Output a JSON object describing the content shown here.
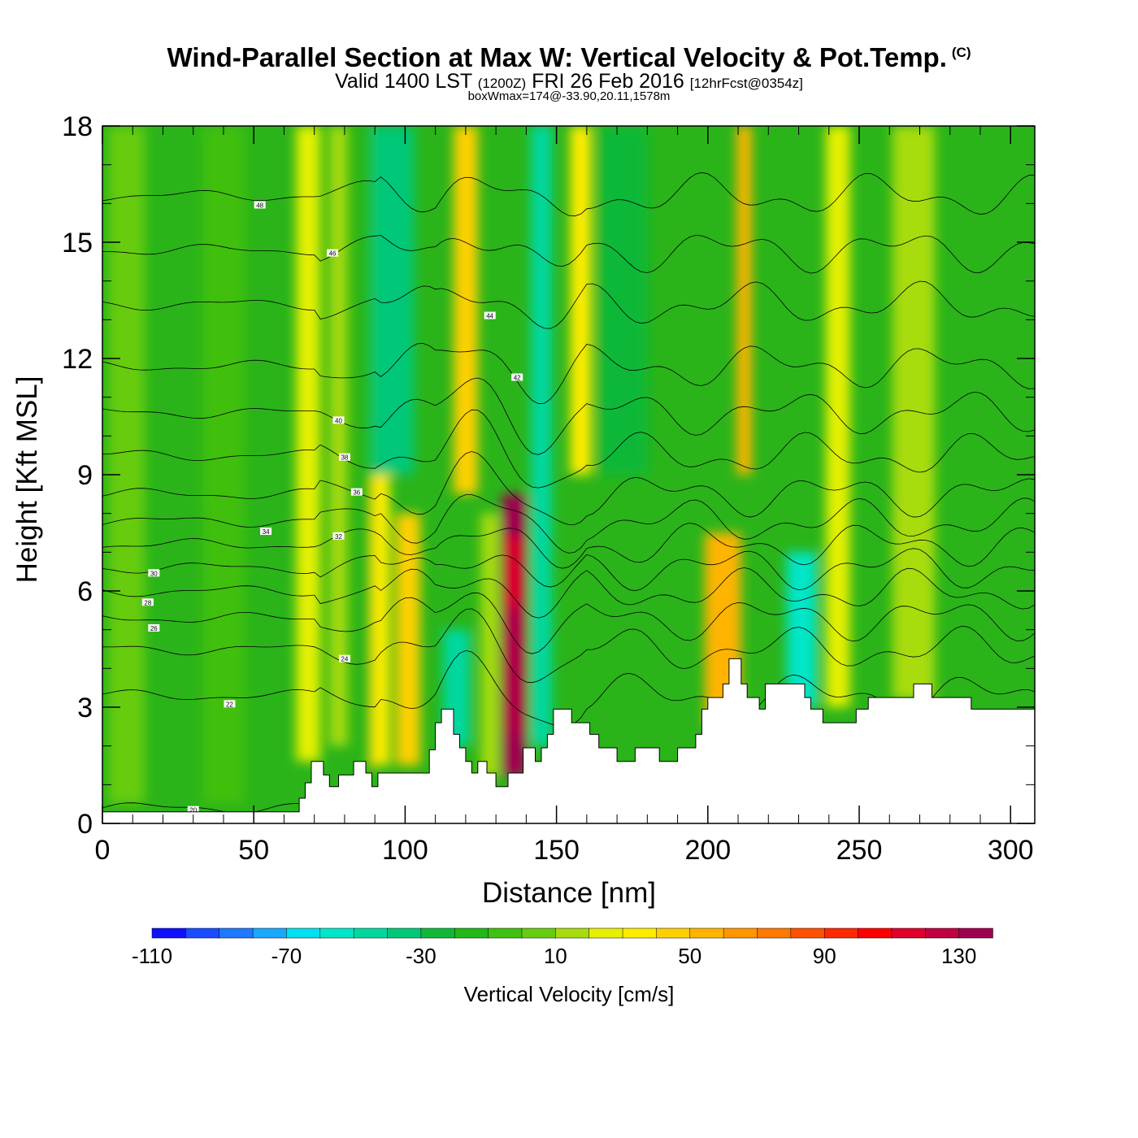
{
  "title": {
    "main": "Wind-Parallel Section at Max W: Vertical Velocity & Pot.Temp.",
    "copyright": "(C)",
    "valid_prefix": "Valid 1400 LST",
    "valid_utc": "(1200Z)",
    "valid_date": "FRI 26 Feb 2016",
    "forecast": "[12hrFcst@0354z]",
    "box_info": "boxWmax=174@-33.90,20.11,1578m"
  },
  "chart_data": {
    "type": "heatmap",
    "xlabel": "Distance [nm]",
    "ylabel": "Height [Kft MSL]",
    "xlim": [
      0,
      308
    ],
    "ylim": [
      0,
      18
    ],
    "x_ticks": [
      "0",
      "50",
      "100",
      "150",
      "200",
      "250",
      "300"
    ],
    "y_ticks": [
      "0",
      "3",
      "6",
      "9",
      "12",
      "15",
      "18"
    ],
    "colorbar": {
      "label": "Vertical Velocity [cm/s]",
      "min": -110,
      "max": 160,
      "step": 10,
      "tick_labels": [
        "-110",
        "-70",
        "-30",
        "10",
        "50",
        "90",
        "130"
      ],
      "colors": [
        "#1010ff",
        "#1a4cff",
        "#1f78ff",
        "#1aa8ff",
        "#00e0f0",
        "#00e6c8",
        "#00d8a0",
        "#00c878",
        "#10b838",
        "#22b818",
        "#40c010",
        "#66cc10",
        "#a8dc10",
        "#e6f000",
        "#ffec00",
        "#ffd000",
        "#ffb400",
        "#ff9600",
        "#ff7800",
        "#ff5000",
        "#ff2800",
        "#ff0000",
        "#e0002c",
        "#c00040",
        "#a00050"
      ]
    },
    "vertical_velocity_bands": [
      {
        "x": 8,
        "width": 12,
        "w_cms": 5,
        "bottom_kft": 0.5,
        "top_kft": 18
      },
      {
        "x": 40,
        "width": 14,
        "w_cms": -8,
        "bottom_kft": 0.5,
        "top_kft": 18
      },
      {
        "x": 68,
        "width": 8,
        "w_cms": 25,
        "bottom_kft": 1.6,
        "top_kft": 18
      },
      {
        "x": 78,
        "width": 6,
        "w_cms": 15,
        "bottom_kft": 2,
        "top_kft": 18
      },
      {
        "x": 88,
        "width": 5,
        "w_cms": -15,
        "bottom_kft": 1.3,
        "top_kft": 18
      },
      {
        "x": 92,
        "width": 6,
        "w_cms": 35,
        "bottom_kft": 1.5,
        "top_kft": 18
      },
      {
        "x": 101,
        "width": 8,
        "w_cms": 45,
        "bottom_kft": 1.5,
        "top_kft": 8
      },
      {
        "x": 96,
        "width": 14,
        "w_cms": -40,
        "bottom_kft": 9,
        "top_kft": 18
      },
      {
        "x": 117,
        "width": 9,
        "w_cms": -45,
        "bottom_kft": 2,
        "top_kft": 5
      },
      {
        "x": 120,
        "width": 8,
        "w_cms": 45,
        "bottom_kft": 8.5,
        "top_kft": 18
      },
      {
        "x": 128,
        "width": 6,
        "w_cms": 15,
        "bottom_kft": 1.2,
        "top_kft": 8
      },
      {
        "x": 136,
        "width": 8,
        "w_cms": 174,
        "bottom_kft": 1.2,
        "top_kft": 8.5
      },
      {
        "x": 145,
        "width": 7,
        "w_cms": -45,
        "bottom_kft": 2,
        "top_kft": 18
      },
      {
        "x": 158,
        "width": 7,
        "w_cms": 35,
        "bottom_kft": 9,
        "top_kft": 18
      },
      {
        "x": 172,
        "width": 16,
        "w_cms": -25,
        "bottom_kft": 9,
        "top_kft": 18
      },
      {
        "x": 205,
        "width": 12,
        "w_cms": 55,
        "bottom_kft": 2.5,
        "top_kft": 7.5
      },
      {
        "x": 212,
        "width": 5,
        "w_cms": 55,
        "bottom_kft": 9,
        "top_kft": 18
      },
      {
        "x": 231,
        "width": 10,
        "w_cms": -55,
        "bottom_kft": 3,
        "top_kft": 7
      },
      {
        "x": 243,
        "width": 8,
        "w_cms": 25,
        "bottom_kft": 3,
        "top_kft": 18
      },
      {
        "x": 268,
        "width": 14,
        "w_cms": 10,
        "bottom_kft": 3.2,
        "top_kft": 18
      }
    ],
    "terrain_kft": [
      [
        0,
        0.3
      ],
      [
        65,
        0.3
      ],
      [
        65,
        0.65
      ],
      [
        67,
        0.65
      ],
      [
        67,
        1.05
      ],
      [
        69,
        1.05
      ],
      [
        69,
        1.6
      ],
      [
        73,
        1.6
      ],
      [
        73,
        1.25
      ],
      [
        75,
        1.25
      ],
      [
        75,
        0.95
      ],
      [
        78,
        0.95
      ],
      [
        78,
        1.25
      ],
      [
        83,
        1.25
      ],
      [
        83,
        1.6
      ],
      [
        87,
        1.6
      ],
      [
        87,
        1.3
      ],
      [
        89,
        1.3
      ],
      [
        89,
        0.95
      ],
      [
        91,
        0.95
      ],
      [
        91,
        1.3
      ],
      [
        108,
        1.3
      ],
      [
        108,
        1.9
      ],
      [
        110,
        1.9
      ],
      [
        110,
        2.6
      ],
      [
        112,
        2.6
      ],
      [
        112,
        2.95
      ],
      [
        116,
        2.95
      ],
      [
        116,
        2.3
      ],
      [
        118,
        2.3
      ],
      [
        118,
        1.95
      ],
      [
        120,
        1.95
      ],
      [
        120,
        1.6
      ],
      [
        122,
        1.6
      ],
      [
        122,
        1.3
      ],
      [
        124,
        1.3
      ],
      [
        124,
        1.6
      ],
      [
        127,
        1.6
      ],
      [
        127,
        1.3
      ],
      [
        130,
        1.3
      ],
      [
        130,
        0.95
      ],
      [
        134,
        0.95
      ],
      [
        134,
        1.3
      ],
      [
        139,
        1.3
      ],
      [
        139,
        1.95
      ],
      [
        143,
        1.95
      ],
      [
        143,
        1.6
      ],
      [
        145,
        1.6
      ],
      [
        145,
        1.95
      ],
      [
        147,
        1.95
      ],
      [
        147,
        2.3
      ],
      [
        149,
        2.3
      ],
      [
        149,
        2.95
      ],
      [
        155,
        2.95
      ],
      [
        155,
        2.6
      ],
      [
        161,
        2.6
      ],
      [
        161,
        2.3
      ],
      [
        164,
        2.3
      ],
      [
        164,
        1.95
      ],
      [
        170,
        1.95
      ],
      [
        170,
        1.6
      ],
      [
        176,
        1.6
      ],
      [
        176,
        1.95
      ],
      [
        184,
        1.95
      ],
      [
        184,
        1.6
      ],
      [
        190,
        1.6
      ],
      [
        190,
        1.95
      ],
      [
        196,
        1.95
      ],
      [
        196,
        2.3
      ],
      [
        198,
        2.3
      ],
      [
        198,
        2.95
      ],
      [
        200,
        2.95
      ],
      [
        200,
        3.25
      ],
      [
        205,
        3.25
      ],
      [
        205,
        3.6
      ],
      [
        207,
        3.6
      ],
      [
        207,
        4.25
      ],
      [
        211,
        4.25
      ],
      [
        211,
        3.6
      ],
      [
        213,
        3.6
      ],
      [
        213,
        3.25
      ],
      [
        217,
        3.25
      ],
      [
        217,
        2.95
      ],
      [
        219,
        2.95
      ],
      [
        219,
        3.6
      ],
      [
        232,
        3.6
      ],
      [
        232,
        3.25
      ],
      [
        234,
        3.25
      ],
      [
        234,
        2.95
      ],
      [
        238,
        2.95
      ],
      [
        238,
        2.6
      ],
      [
        249,
        2.6
      ],
      [
        249,
        2.95
      ],
      [
        253,
        2.95
      ],
      [
        253,
        3.25
      ],
      [
        268,
        3.25
      ],
      [
        268,
        3.6
      ],
      [
        274,
        3.6
      ],
      [
        274,
        3.25
      ],
      [
        287,
        3.25
      ],
      [
        287,
        2.95
      ],
      [
        308,
        2.95
      ]
    ],
    "theta_contours": [
      {
        "label": "20",
        "base_kft": 0.4,
        "label_x": 30
      },
      {
        "label": "22",
        "base_kft": 3.3,
        "label_x": 42
      },
      {
        "label": "24",
        "base_kft": 4.5,
        "label_x": 80
      },
      {
        "label": "26",
        "base_kft": 5.3,
        "label_x": 17
      },
      {
        "label": "28",
        "base_kft": 6.0,
        "label_x": 15
      },
      {
        "label": "30",
        "base_kft": 6.6,
        "label_x": 17
      },
      {
        "label": "32",
        "base_kft": 7.2,
        "label_x": 78
      },
      {
        "label": "34",
        "base_kft": 7.8,
        "label_x": 54
      },
      {
        "label": "36",
        "base_kft": 8.5,
        "label_x": 84
      },
      {
        "label": "38",
        "base_kft": 9.5,
        "label_x": 80
      },
      {
        "label": "40",
        "base_kft": 10.6,
        "label_x": 78
      },
      {
        "label": "42",
        "base_kft": 11.8,
        "label_x": 137
      },
      {
        "label": "44",
        "base_kft": 13.4,
        "label_x": 128
      },
      {
        "label": "46",
        "base_kft": 14.8,
        "label_x": 76
      },
      {
        "label": "48",
        "base_kft": 16.2,
        "label_x": 52
      }
    ]
  }
}
